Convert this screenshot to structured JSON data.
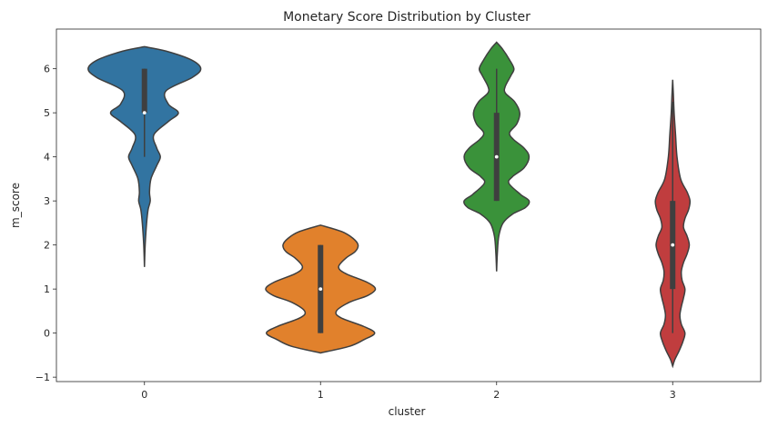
{
  "chart_data": {
    "type": "violin",
    "title": "Monetary Score Distribution by Cluster",
    "xlabel": "cluster",
    "ylabel": "m_score",
    "categories": [
      "0",
      "1",
      "2",
      "3"
    ],
    "ylim": [
      -1.1,
      6.9
    ],
    "yticks": [
      "−1",
      "0",
      "1",
      "2",
      "3",
      "4",
      "5",
      "6"
    ],
    "ytick_values": [
      -1,
      0,
      1,
      2,
      3,
      4,
      5,
      6
    ],
    "grid": false,
    "legend": "none",
    "series": [
      {
        "category": "0",
        "color": "#3274a1",
        "range": [
          1.5,
          6.5
        ],
        "median": 5,
        "q1": 5,
        "q3": 6,
        "whisker": [
          4,
          6
        ],
        "profile": [
          [
            1.5,
            0.0
          ],
          [
            2.0,
            0.01
          ],
          [
            2.5,
            0.03
          ],
          [
            2.8,
            0.05
          ],
          [
            3.0,
            0.08
          ],
          [
            3.2,
            0.07
          ],
          [
            3.5,
            0.09
          ],
          [
            3.8,
            0.17
          ],
          [
            4.0,
            0.22
          ],
          [
            4.2,
            0.17
          ],
          [
            4.5,
            0.13
          ],
          [
            4.8,
            0.33
          ],
          [
            5.0,
            0.47
          ],
          [
            5.2,
            0.33
          ],
          [
            5.5,
            0.3
          ],
          [
            5.8,
            0.66
          ],
          [
            6.0,
            0.78
          ],
          [
            6.2,
            0.65
          ],
          [
            6.4,
            0.3
          ],
          [
            6.5,
            0.0
          ]
        ]
      },
      {
        "category": "1",
        "color": "#e1812c",
        "range": [
          -0.45,
          2.45
        ],
        "median": 1,
        "q1": 0,
        "q3": 2,
        "whisker": [
          0,
          2
        ],
        "profile": [
          [
            -0.45,
            0.0
          ],
          [
            -0.3,
            0.4
          ],
          [
            -0.15,
            0.6
          ],
          [
            0.0,
            0.75
          ],
          [
            0.15,
            0.6
          ],
          [
            0.35,
            0.28
          ],
          [
            0.5,
            0.22
          ],
          [
            0.7,
            0.4
          ],
          [
            0.85,
            0.65
          ],
          [
            1.0,
            0.76
          ],
          [
            1.15,
            0.65
          ],
          [
            1.35,
            0.35
          ],
          [
            1.5,
            0.25
          ],
          [
            1.7,
            0.35
          ],
          [
            1.85,
            0.48
          ],
          [
            2.0,
            0.52
          ],
          [
            2.15,
            0.45
          ],
          [
            2.3,
            0.3
          ],
          [
            2.45,
            0.0
          ]
        ]
      },
      {
        "category": "2",
        "color": "#3a923a",
        "range": [
          1.4,
          6.6
        ],
        "median": 4,
        "q1": 3,
        "q3": 5,
        "whisker": [
          3,
          6
        ],
        "profile": [
          [
            1.4,
            0.0
          ],
          [
            1.8,
            0.01
          ],
          [
            2.2,
            0.03
          ],
          [
            2.5,
            0.09
          ],
          [
            2.7,
            0.22
          ],
          [
            2.85,
            0.4
          ],
          [
            3.0,
            0.45
          ],
          [
            3.15,
            0.33
          ],
          [
            3.4,
            0.17
          ],
          [
            3.55,
            0.22
          ],
          [
            3.75,
            0.38
          ],
          [
            4.0,
            0.45
          ],
          [
            4.2,
            0.38
          ],
          [
            4.4,
            0.23
          ],
          [
            4.55,
            0.18
          ],
          [
            4.75,
            0.28
          ],
          [
            5.0,
            0.32
          ],
          [
            5.25,
            0.25
          ],
          [
            5.45,
            0.12
          ],
          [
            5.6,
            0.12
          ],
          [
            5.85,
            0.2
          ],
          [
            6.0,
            0.24
          ],
          [
            6.2,
            0.18
          ],
          [
            6.45,
            0.08
          ],
          [
            6.6,
            0.0
          ]
        ]
      },
      {
        "category": "3",
        "color": "#c03d3e",
        "range": [
          -0.75,
          5.75
        ],
        "median": 2,
        "q1": 1,
        "q3": 3,
        "whisker": [
          0,
          5.25
        ],
        "profile": [
          [
            -0.75,
            0.0
          ],
          [
            -0.6,
            0.03
          ],
          [
            -0.4,
            0.09
          ],
          [
            -0.2,
            0.14
          ],
          [
            0.0,
            0.17
          ],
          [
            0.2,
            0.12
          ],
          [
            0.4,
            0.1
          ],
          [
            0.6,
            0.12
          ],
          [
            0.8,
            0.15
          ],
          [
            1.0,
            0.17
          ],
          [
            1.2,
            0.13
          ],
          [
            1.4,
            0.12
          ],
          [
            1.6,
            0.15
          ],
          [
            1.8,
            0.2
          ],
          [
            2.0,
            0.23
          ],
          [
            2.2,
            0.2
          ],
          [
            2.4,
            0.15
          ],
          [
            2.6,
            0.17
          ],
          [
            2.8,
            0.22
          ],
          [
            3.0,
            0.24
          ],
          [
            3.2,
            0.2
          ],
          [
            3.5,
            0.11
          ],
          [
            4.0,
            0.06
          ],
          [
            4.5,
            0.04
          ],
          [
            5.0,
            0.02
          ],
          [
            5.4,
            0.01
          ],
          [
            5.75,
            0.0
          ]
        ]
      }
    ]
  }
}
